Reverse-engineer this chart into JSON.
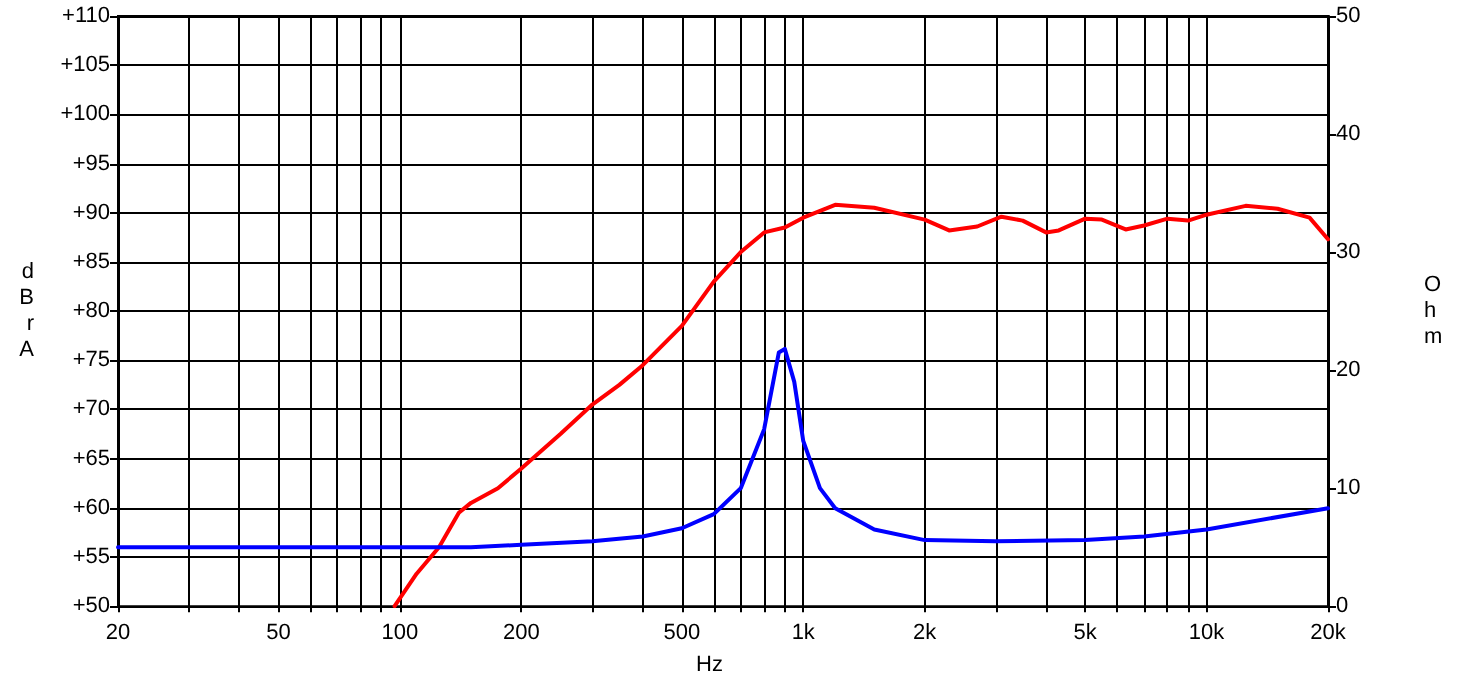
{
  "chart_data": {
    "type": "line",
    "xlabel": "Hz",
    "ylabel": "dBrA",
    "y2label": "Ohm",
    "log": "x",
    "grid": true,
    "marker": "none",
    "line_style": "solid",
    "xlim": [
      20,
      20000
    ],
    "xticks": [
      20,
      {
        "value": 30,
        "label": null
      },
      {
        "value": 40,
        "label": null
      },
      50,
      {
        "value": 60,
        "label": null
      },
      {
        "value": 70,
        "label": null
      },
      {
        "value": 80,
        "label": null
      },
      {
        "value": 90,
        "label": null
      },
      100,
      200,
      {
        "value": 300,
        "label": null
      },
      {
        "value": 400,
        "label": null
      },
      500,
      {
        "value": 600,
        "label": null
      },
      {
        "value": 700,
        "label": null
      },
      {
        "value": 800,
        "label": null
      },
      {
        "value": 900,
        "label": null
      },
      {
        "value": 1000,
        "label": "1k"
      },
      {
        "value": 2000,
        "label": "2k"
      },
      {
        "value": 3000,
        "label": null
      },
      {
        "value": 4000,
        "label": null
      },
      {
        "value": 5000,
        "label": "5k"
      },
      {
        "value": 6000,
        "label": null
      },
      {
        "value": 7000,
        "label": null
      },
      {
        "value": 8000,
        "label": null
      },
      {
        "value": 9000,
        "label": null
      },
      {
        "value": 10000,
        "label": "10k"
      },
      {
        "value": 20000,
        "label": "20k"
      }
    ],
    "ylim": [
      50,
      110
    ],
    "yticks": [
      {
        "value": 50,
        "label": "+50"
      },
      {
        "value": 55,
        "label": "+55"
      },
      {
        "value": 60,
        "label": "+60"
      },
      {
        "value": 65,
        "label": "+65"
      },
      {
        "value": 70,
        "label": "+70"
      },
      {
        "value": 75,
        "label": "+75"
      },
      {
        "value": 80,
        "label": "+80"
      },
      {
        "value": 85,
        "label": "+85"
      },
      {
        "value": 90,
        "label": "+90"
      },
      {
        "value": 95,
        "label": "+95"
      },
      {
        "value": 100,
        "label": "+100"
      },
      {
        "value": 105,
        "label": "+105"
      },
      {
        "value": 110,
        "label": "+110"
      }
    ],
    "y2lim": [
      0,
      50
    ],
    "y2ticks": [
      0,
      10,
      20,
      30,
      40,
      50
    ],
    "series": [
      {
        "color": "#ff0000",
        "x": [
          97,
          110,
          125,
          140,
          150,
          175,
          200,
          250,
          300,
          350,
          400,
          500,
          600,
          700,
          800,
          900,
          1000,
          1200,
          1500,
          2000,
          2300,
          2700,
          3100,
          3500,
          4000,
          4300,
          5000,
          5500,
          6300,
          7000,
          8000,
          9000,
          10000,
          12500,
          15000,
          18000,
          20000
        ],
        "values": [
          50,
          53.3,
          56,
          59.5,
          60.5,
          62,
          64,
          67.5,
          70.5,
          72.5,
          74.5,
          78.5,
          83,
          86,
          88,
          88.5,
          89.5,
          90.8,
          90.5,
          89.3,
          88.2,
          88.6,
          89.6,
          89.2,
          88,
          88.2,
          89.4,
          89.3,
          88.3,
          88.7,
          89.4,
          89.2,
          89.8,
          90.7,
          90.4,
          89.5,
          87.3
        ]
      },
      {
        "color": "#0000ff",
        "axis": "y2",
        "x": [
          20,
          150,
          200,
          300,
          400,
          500,
          600,
          700,
          800,
          870,
          900,
          950,
          1000,
          1100,
          1200,
          1500,
          2000,
          3000,
          5000,
          7000,
          10000,
          20000
        ],
        "values": [
          5,
          5,
          5.2,
          5.5,
          5.9,
          6.6,
          7.8,
          10,
          15,
          21.5,
          21.8,
          19,
          14,
          10,
          8.3,
          6.5,
          5.6,
          5.5,
          5.6,
          5.9,
          6.5,
          8.3
        ]
      }
    ]
  }
}
